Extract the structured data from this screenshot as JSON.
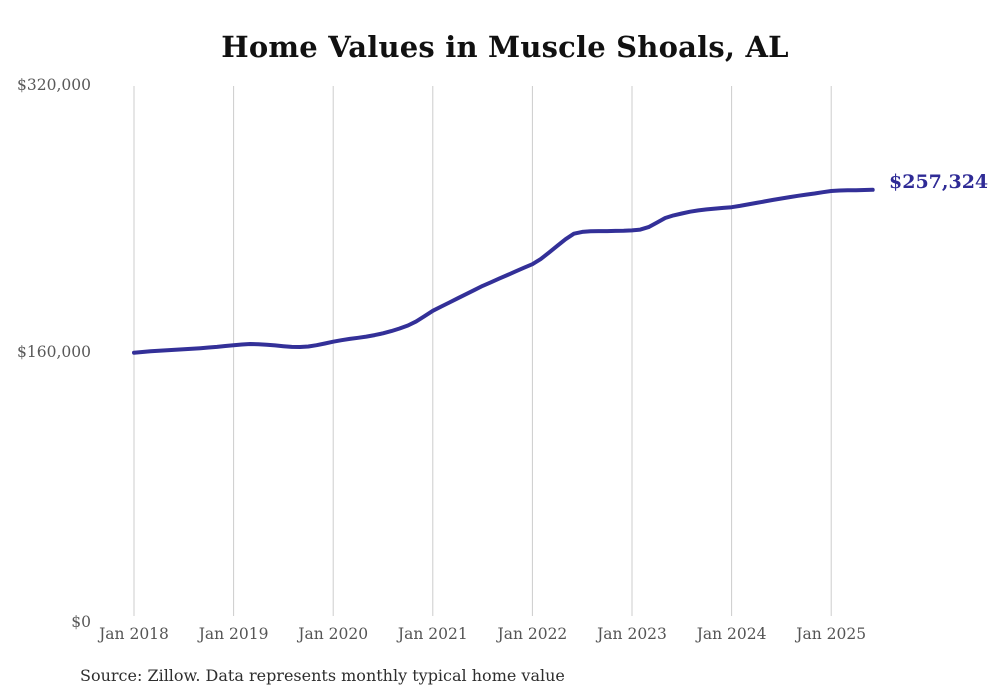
{
  "chart_data": {
    "type": "line",
    "title": "Home Values in Muscle Shoals, AL",
    "source_note": "Source: Zillow. Data represents monthly typical home value",
    "end_label": "$257,324",
    "final_value": 257324,
    "ylim": [
      0,
      320000
    ],
    "grid": "vertical-yearly",
    "legend": "none",
    "colors": {
      "line": "#333098",
      "end_label": "#2f2b96",
      "gridline": "#cccccc",
      "axis_text": "#595959",
      "title_text": "#111111"
    },
    "y_ticks": [
      {
        "label": "$0",
        "value": 0
      },
      {
        "label": "$160,000",
        "value": 160000
      },
      {
        "label": "$320,000",
        "value": 320000
      }
    ],
    "x_ticks": [
      {
        "label": "Jan 2018",
        "month_index": 0
      },
      {
        "label": "Jan 2019",
        "month_index": 12
      },
      {
        "label": "Jan 2020",
        "month_index": 24
      },
      {
        "label": "Jan 2021",
        "month_index": 36
      },
      {
        "label": "Jan 2022",
        "month_index": 48
      },
      {
        "label": "Jan 2023",
        "month_index": 60
      },
      {
        "label": "Jan 2024",
        "month_index": 72
      },
      {
        "label": "Jan 2025",
        "month_index": 84
      }
    ],
    "series": [
      {
        "name": "Monthly typical home value",
        "start_month": "2018-01",
        "end_month": "2025-06",
        "values": [
          159000,
          159400,
          159800,
          160100,
          160400,
          160700,
          161000,
          161300,
          161700,
          162100,
          162500,
          163000,
          163500,
          163900,
          164200,
          164100,
          163800,
          163400,
          162900,
          162500,
          162400,
          162700,
          163500,
          164500,
          165600,
          166500,
          167300,
          168000,
          168700,
          169600,
          170700,
          172000,
          173600,
          175400,
          177900,
          181000,
          184300,
          186800,
          189300,
          191800,
          194300,
          196800,
          199300,
          201500,
          203700,
          205900,
          208100,
          210300,
          212400,
          215500,
          219400,
          223500,
          227500,
          230800,
          231900,
          232300,
          232400,
          232400,
          232500,
          232600,
          232800,
          233300,
          234800,
          237500,
          240300,
          241900,
          243000,
          244100,
          244900,
          245500,
          246000,
          246400,
          246800,
          247600,
          248500,
          249400,
          250300,
          251200,
          252100,
          252900,
          253700,
          254400,
          255100,
          255900,
          256600,
          256900,
          257000,
          257100,
          257200,
          257324
        ]
      }
    ]
  }
}
